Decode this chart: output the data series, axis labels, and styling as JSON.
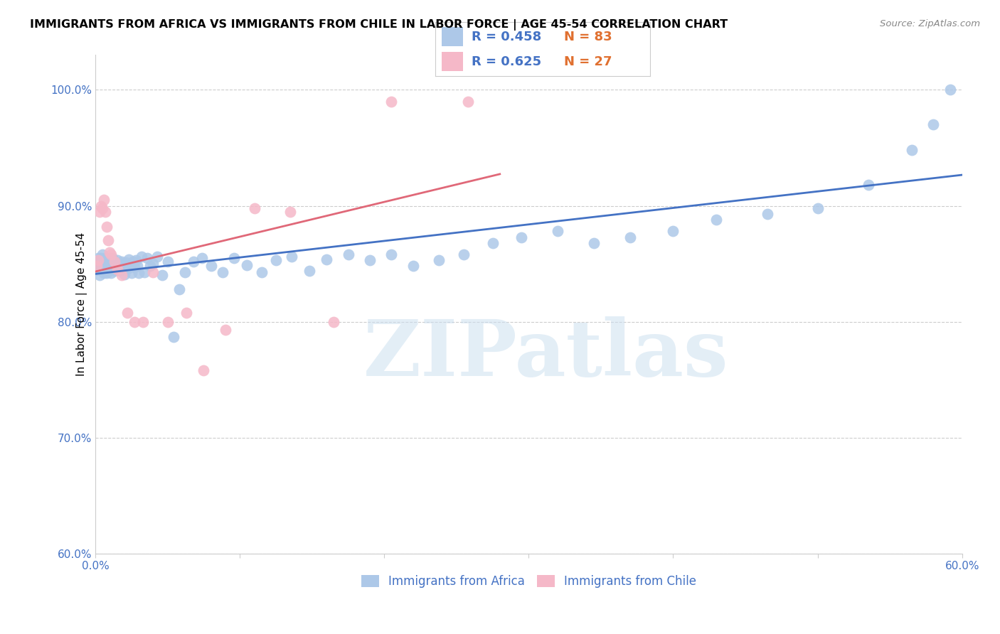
{
  "title": "IMMIGRANTS FROM AFRICA VS IMMIGRANTS FROM CHILE IN LABOR FORCE | AGE 45-54 CORRELATION CHART",
  "source": "Source: ZipAtlas.com",
  "ylabel": "In Labor Force | Age 45-54",
  "xlim": [
    0.0,
    0.6
  ],
  "ylim": [
    0.6,
    1.03
  ],
  "xtick_positions": [
    0.0,
    0.1,
    0.2,
    0.3,
    0.4,
    0.5,
    0.6
  ],
  "xticklabels": [
    "0.0%",
    "",
    "",
    "",
    "",
    "",
    "60.0%"
  ],
  "ytick_positions": [
    0.6,
    0.7,
    0.8,
    0.9,
    1.0
  ],
  "yticklabels": [
    "60.0%",
    "70.0%",
    "80.0%",
    "90.0%",
    "100.0%"
  ],
  "legend_africa": "Immigrants from Africa",
  "legend_chile": "Immigrants from Chile",
  "R_africa": 0.458,
  "N_africa": 83,
  "R_chile": 0.625,
  "N_chile": 27,
  "color_africa": "#adc8e8",
  "color_chile": "#f5b8c8",
  "line_color_africa": "#4472c4",
  "line_color_chile": "#e06878",
  "watermark": "ZIPatlas",
  "africa_x": [
    0.001,
    0.002,
    0.002,
    0.003,
    0.003,
    0.004,
    0.004,
    0.005,
    0.005,
    0.005,
    0.006,
    0.006,
    0.007,
    0.007,
    0.008,
    0.008,
    0.009,
    0.009,
    0.01,
    0.01,
    0.011,
    0.012,
    0.012,
    0.013,
    0.013,
    0.014,
    0.015,
    0.016,
    0.017,
    0.018,
    0.019,
    0.02,
    0.021,
    0.022,
    0.023,
    0.024,
    0.025,
    0.026,
    0.027,
    0.028,
    0.029,
    0.03,
    0.032,
    0.034,
    0.036,
    0.038,
    0.04,
    0.043,
    0.046,
    0.05,
    0.054,
    0.058,
    0.062,
    0.068,
    0.074,
    0.08,
    0.088,
    0.096,
    0.105,
    0.115,
    0.125,
    0.136,
    0.148,
    0.16,
    0.175,
    0.19,
    0.205,
    0.22,
    0.238,
    0.255,
    0.275,
    0.295,
    0.32,
    0.345,
    0.37,
    0.4,
    0.43,
    0.465,
    0.5,
    0.535,
    0.565,
    0.58,
    0.592
  ],
  "africa_y": [
    0.845,
    0.845,
    0.855,
    0.84,
    0.85,
    0.855,
    0.848,
    0.845,
    0.852,
    0.858,
    0.842,
    0.85,
    0.848,
    0.855,
    0.842,
    0.85,
    0.847,
    0.853,
    0.848,
    0.855,
    0.842,
    0.848,
    0.855,
    0.844,
    0.852,
    0.847,
    0.853,
    0.848,
    0.844,
    0.852,
    0.847,
    0.841,
    0.851,
    0.846,
    0.854,
    0.848,
    0.842,
    0.852,
    0.847,
    0.853,
    0.848,
    0.842,
    0.856,
    0.843,
    0.855,
    0.848,
    0.85,
    0.856,
    0.84,
    0.852,
    0.787,
    0.828,
    0.843,
    0.852,
    0.855,
    0.848,
    0.843,
    0.855,
    0.849,
    0.843,
    0.853,
    0.856,
    0.844,
    0.854,
    0.858,
    0.853,
    0.858,
    0.848,
    0.853,
    0.858,
    0.868,
    0.873,
    0.878,
    0.868,
    0.873,
    0.878,
    0.888,
    0.893,
    0.898,
    0.918,
    0.948,
    0.97,
    1.0
  ],
  "chile_x": [
    0.001,
    0.002,
    0.003,
    0.004,
    0.005,
    0.006,
    0.007,
    0.008,
    0.009,
    0.01,
    0.011,
    0.013,
    0.015,
    0.018,
    0.022,
    0.027,
    0.033,
    0.04,
    0.05,
    0.063,
    0.075,
    0.09,
    0.11,
    0.135,
    0.165,
    0.205,
    0.258
  ],
  "chile_y": [
    0.848,
    0.853,
    0.895,
    0.9,
    0.898,
    0.905,
    0.895,
    0.882,
    0.87,
    0.86,
    0.858,
    0.852,
    0.845,
    0.84,
    0.808,
    0.8,
    0.8,
    0.843,
    0.8,
    0.808,
    0.758,
    0.793,
    0.898,
    0.895,
    0.8,
    0.99,
    0.99
  ]
}
